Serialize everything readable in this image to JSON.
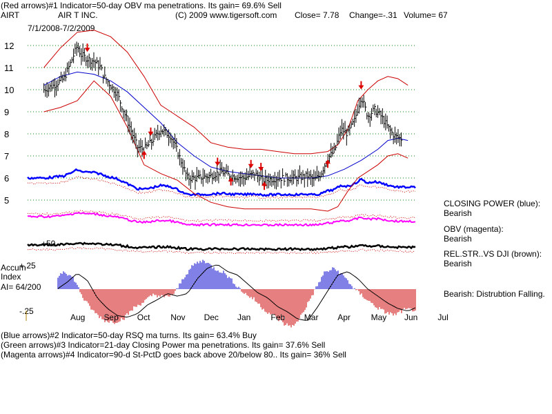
{
  "header": {
    "line1": "(Red arrows)#1 Indicator=50-day OBV ma penetrations. Its gain= 69.6% Sell",
    "ticker": "AIRT",
    "company": "AIR T INC.",
    "copyright": "(C) 2009 www.tigersoft.com",
    "close": "Close=  7.78",
    "change": "Change=-.31",
    "volume": "Volume= 67",
    "date_range": "7/1/2008-7/2/2009"
  },
  "footer": {
    "line1": "(Blue arrows)#2 Indicator=50-day RSQ ma turns. Its gain= 63.4% Buy",
    "line2": "(Green arrows)#3 Indicator=21-day Closing Power ma penetrations. Its gain= 37.6% Sell",
    "line3": "(Magenta arrows)#4 Indicator=90-d St-PctD goes back above 20/below 80.. Its gain= 36% Sell"
  },
  "legend": {
    "closing_power_label": "CLOSING POWER (blue):",
    "closing_power_value": "Bearish",
    "obv_label": "OBV (magenta):",
    "obv_value": "Bearish",
    "relstr_label": "REL.STR..VS DJI (brown):",
    "relstr_value": "Bearish",
    "accum_note": "Bearish:  Distrubtion Falling."
  },
  "accum": {
    "title_line1": "Accum",
    "title_line2": "Index",
    "ai_text": "AI= 64/200",
    "tick_plus": "+.25",
    "tick_minus": "-.25",
    "tick_fifty": "+50"
  },
  "colors": {
    "price_bars": "#000000",
    "bollinger": "#cc0000",
    "moving_avg_blue": "#0000cc",
    "closing_power": "#0000ff",
    "obv": "#ff00ff",
    "relstr": "#000000",
    "accum_positive": "#0000cc",
    "accum_negative": "#cc0000",
    "gridline": "#008000",
    "sell_arrow": "#dd0000",
    "buy_arrow": "#dd0000"
  },
  "chart_data": {
    "type": "line",
    "title": "AIRT  AIR T INC.  7/1/2008-7/2/2009",
    "x_months": [
      "Aug",
      "Sep",
      "Oct",
      "Nov",
      "Dec",
      "Jan",
      "Feb",
      "Mar",
      "Apr",
      "May",
      "Jun",
      "Jul"
    ],
    "y_ticks": [
      5,
      6,
      7,
      8,
      9,
      10,
      11,
      12
    ],
    "ylim": [
      4.2,
      12.8
    ],
    "grid": true,
    "last_close": 7.78,
    "series": [
      {
        "name": "price",
        "x": [
          0.0,
          0.3,
          0.6,
          0.8,
          1.0,
          1.1,
          1.3,
          1.5,
          1.7,
          1.8,
          2.0,
          2.2,
          2.4,
          2.6,
          2.8,
          3.0,
          3.2,
          3.5,
          3.8,
          4.0,
          4.3,
          4.6,
          5.0,
          5.3,
          5.6,
          6.0,
          6.3,
          6.6,
          7.0,
          7.3,
          7.6,
          7.9,
          8.1,
          8.3,
          8.5,
          8.7,
          8.9,
          9.1,
          9.3,
          9.5,
          9.7,
          9.9,
          10.1,
          10.3,
          10.5,
          10.7
        ],
        "values": [
          10.0,
          10.2,
          10.5,
          11.2,
          12.0,
          11.6,
          11.4,
          11.3,
          11.0,
          10.6,
          10.2,
          9.8,
          9.0,
          8.2,
          7.4,
          7.3,
          7.6,
          8.2,
          7.9,
          7.2,
          6.0,
          6.0,
          6.1,
          6.3,
          6.1,
          6.0,
          6.2,
          5.9,
          6.0,
          6.0,
          6.0,
          6.1,
          5.9,
          6.2,
          6.9,
          7.2,
          8.2,
          8.0,
          8.6,
          9.7,
          8.8,
          9.1,
          8.8,
          8.3,
          7.9,
          7.78
        ]
      },
      {
        "name": "bollinger-upper",
        "x": [
          0.0,
          0.5,
          1.0,
          1.5,
          2.0,
          2.5,
          3.0,
          3.5,
          4.0,
          4.5,
          5.0,
          5.5,
          6.0,
          6.5,
          7.0,
          7.5,
          8.0,
          8.5,
          8.8,
          9.1,
          9.4,
          9.7,
          10.0,
          10.3,
          10.6,
          10.9
        ],
        "values": [
          11.0,
          11.9,
          12.6,
          12.7,
          12.4,
          11.7,
          10.6,
          9.3,
          8.8,
          8.3,
          7.6,
          7.4,
          7.3,
          7.3,
          7.2,
          7.1,
          7.1,
          7.2,
          7.5,
          8.2,
          9.5,
          10.0,
          10.4,
          10.6,
          10.5,
          10.2
        ]
      },
      {
        "name": "bollinger-lower",
        "x": [
          0.0,
          0.5,
          1.0,
          1.5,
          2.0,
          2.5,
          3.0,
          3.5,
          4.0,
          4.5,
          5.0,
          5.5,
          6.0,
          6.5,
          7.0,
          7.5,
          8.0,
          8.5,
          8.8,
          9.1,
          9.4,
          9.7,
          10.0,
          10.3,
          10.6,
          10.9
        ],
        "values": [
          9.0,
          9.2,
          9.5,
          10.4,
          9.7,
          8.3,
          6.6,
          6.2,
          5.9,
          5.3,
          4.9,
          4.7,
          4.6,
          4.6,
          4.6,
          4.6,
          4.6,
          4.5,
          4.7,
          5.4,
          6.0,
          6.3,
          6.6,
          7.0,
          7.1,
          6.9
        ]
      },
      {
        "name": "moving-average-50",
        "x": [
          0.0,
          0.5,
          1.0,
          1.5,
          2.0,
          2.5,
          3.0,
          3.5,
          4.0,
          4.5,
          5.0,
          5.5,
          6.0,
          6.5,
          7.0,
          7.5,
          8.0,
          8.5,
          9.0,
          9.5,
          10.0,
          10.3,
          10.6,
          10.9
        ],
        "values": [
          10.2,
          10.6,
          10.8,
          10.7,
          10.4,
          9.9,
          9.2,
          8.5,
          7.6,
          7.0,
          6.5,
          6.3,
          6.2,
          6.1,
          6.0,
          6.0,
          6.0,
          6.1,
          6.4,
          6.8,
          7.3,
          7.7,
          7.8,
          7.7
        ]
      }
    ],
    "sell_arrows_x": [
      1.3,
      3.2,
      5.2,
      6.2,
      6.5,
      9.5
    ],
    "buy_arrows_x": [
      3.0,
      5.6,
      6.6,
      8.5
    ],
    "accum_index": {
      "ticks": [
        "+.25",
        "-.25"
      ],
      "x": [
        0.0,
        0.3,
        0.6,
        0.9,
        1.2,
        1.5,
        1.8,
        2.1,
        2.4,
        2.7,
        3.0,
        3.3,
        3.6,
        3.9,
        4.2,
        4.5,
        4.8,
        5.1,
        5.4,
        5.7,
        6.0,
        6.3,
        6.6,
        6.9,
        7.2,
        7.5,
        7.8,
        8.1,
        8.4,
        8.7,
        9.0,
        9.3,
        9.6,
        9.9,
        10.2,
        10.5,
        10.8
      ],
      "values": [
        0.0,
        0.08,
        0.18,
        0.1,
        -0.1,
        -0.22,
        -0.3,
        -0.32,
        -0.28,
        -0.18,
        -0.12,
        -0.05,
        -0.08,
        -0.05,
        0.12,
        0.24,
        0.28,
        0.2,
        0.16,
        0.06,
        -0.04,
        -0.1,
        -0.2,
        -0.26,
        -0.34,
        -0.36,
        -0.2,
        -0.02,
        0.16,
        0.2,
        0.12,
        0.0,
        -0.08,
        -0.16,
        -0.22,
        -0.25,
        -0.2
      ]
    }
  }
}
